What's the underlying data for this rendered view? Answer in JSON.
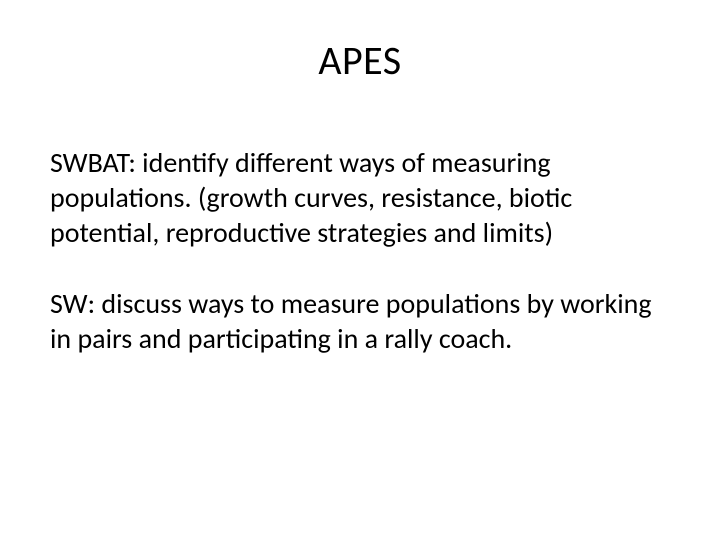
{
  "slide": {
    "title": "APES",
    "paragraph1": "SWBAT: identify different ways of measuring populations. (growth curves, resistance, biotic potential, reproductive strategies and limits)",
    "paragraph2": "SW: discuss ways to measure populations by working in pairs and participating in a rally coach.",
    "background_color": "#ffffff",
    "text_color": "#000000",
    "title_fontsize": 40,
    "body_fontsize": 28,
    "font_family": "Calibri"
  }
}
